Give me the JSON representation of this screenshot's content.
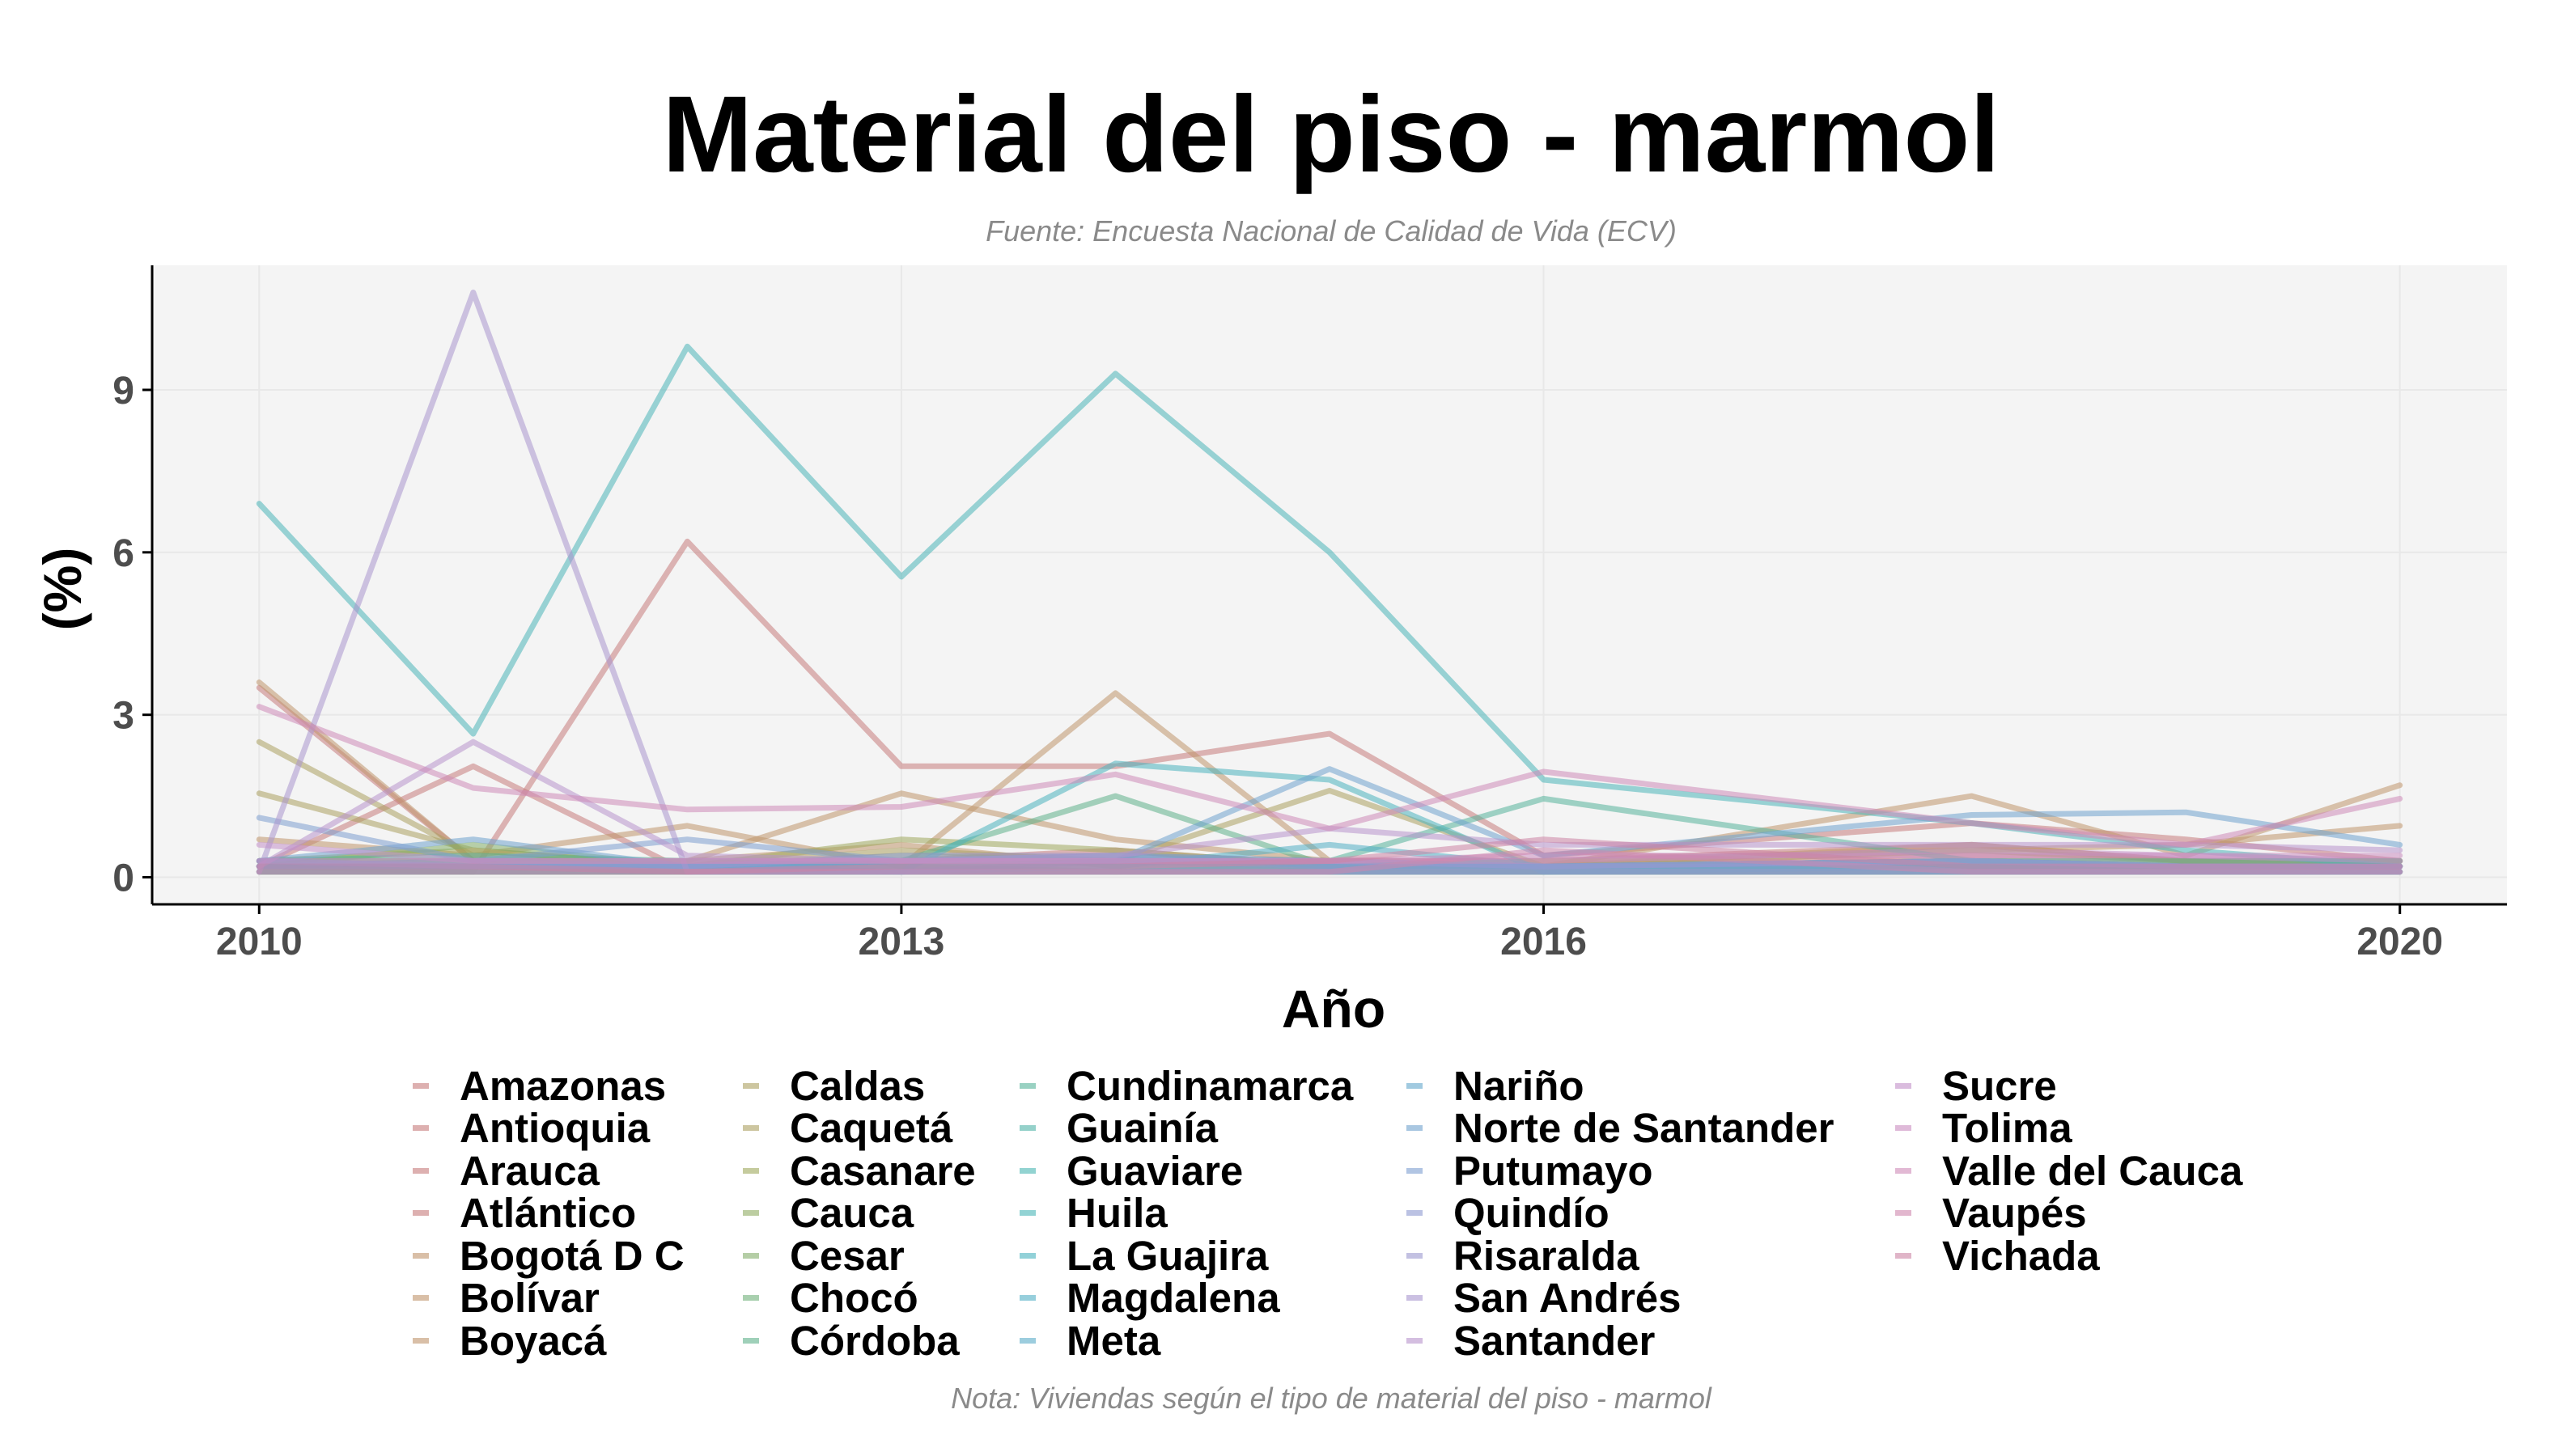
{
  "chart_data": {
    "type": "line",
    "title": "Material del piso - marmol",
    "subtitle": "Fuente: Encuesta Nacional de Calidad de Vida (ECV)",
    "caption": "Nota: Viviendas según el tipo de material del piso - marmol",
    "xlabel": "Año",
    "ylabel": "(%)",
    "xlim": [
      2009.5,
      2020.5
    ],
    "ylim": [
      -0.5,
      11.3
    ],
    "x_ticks": [
      2010,
      2013,
      2016,
      2020
    ],
    "y_ticks": [
      0,
      3,
      6,
      9
    ],
    "x": [
      2010,
      2011,
      2012,
      2013,
      2014,
      2015,
      2016,
      2018,
      2019,
      2020
    ],
    "grid": true,
    "legend_position": "bottom",
    "series": [
      {
        "name": "Amazonas",
        "color": "#C77C7C",
        "values": [
          0.1,
          0.1,
          0.1,
          0.1,
          0.1,
          0.1,
          0.1,
          0.1,
          0.1,
          0.1
        ]
      },
      {
        "name": "Antioquia",
        "color": "#C77C7C",
        "values": [
          3.5,
          0.3,
          0.2,
          0.3,
          0.3,
          0.3,
          0.3,
          0.6,
          0.3,
          0.3
        ]
      },
      {
        "name": "Arauca",
        "color": "#C77C7C",
        "values": [
          0.2,
          0.1,
          6.2,
          2.05,
          2.05,
          2.65,
          0.4,
          1.0,
          0.7,
          0.3
        ]
      },
      {
        "name": "Atlántico",
        "color": "#C77C7C",
        "values": [
          0.2,
          2.05,
          0.1,
          0.3,
          0.5,
          0.2,
          0.2,
          0.4,
          0.3,
          0.2
        ]
      },
      {
        "name": "Bogotá D C",
        "color": "#C0956C",
        "values": [
          0.7,
          0.4,
          0.95,
          0.2,
          3.4,
          0.3,
          0.2,
          1.5,
          0.4,
          1.7
        ]
      },
      {
        "name": "Bolívar",
        "color": "#C0956C",
        "values": [
          0.3,
          0.3,
          0.3,
          1.55,
          0.7,
          0.3,
          0.3,
          0.5,
          0.6,
          0.95
        ]
      },
      {
        "name": "Boyacá",
        "color": "#C0956C",
        "values": [
          3.6,
          0.3,
          0.3,
          0.6,
          0.2,
          0.2,
          0.2,
          0.6,
          0.3,
          0.3
        ]
      },
      {
        "name": "Caldas",
        "color": "#ABA060",
        "values": [
          2.5,
          0.4,
          0.2,
          0.5,
          0.3,
          1.6,
          0.2,
          0.5,
          0.3,
          0.3
        ]
      },
      {
        "name": "Caquetá",
        "color": "#ABA060",
        "values": [
          1.55,
          0.5,
          0.2,
          0.2,
          0.1,
          0.2,
          0.1,
          0.2,
          0.2,
          0.2
        ]
      },
      {
        "name": "Casanare",
        "color": "#9FA85C",
        "values": [
          0.3,
          0.5,
          0.2,
          0.7,
          0.5,
          0.2,
          0.2,
          0.3,
          0.2,
          0.2
        ]
      },
      {
        "name": "Cauca",
        "color": "#8FAC62",
        "values": [
          0.1,
          0.1,
          0.1,
          0.1,
          0.1,
          0.1,
          0.1,
          0.1,
          0.1,
          0.1
        ]
      },
      {
        "name": "Cesar",
        "color": "#84AE6A",
        "values": [
          0.2,
          0.6,
          0.2,
          0.4,
          0.3,
          0.2,
          0.1,
          0.2,
          0.2,
          0.2
        ]
      },
      {
        "name": "Chocó",
        "color": "#70B07A",
        "values": [
          0.1,
          0.1,
          0.1,
          0.1,
          0.1,
          0.1,
          0.1,
          0.1,
          0.1,
          0.1
        ]
      },
      {
        "name": "Córdoba",
        "color": "#5FB18A",
        "values": [
          0.2,
          0.3,
          0.2,
          0.3,
          1.5,
          0.2,
          0.2,
          0.3,
          0.2,
          0.2
        ]
      },
      {
        "name": "Cundinamarca",
        "color": "#55B39A",
        "values": [
          0.3,
          0.4,
          0.3,
          0.3,
          0.4,
          0.3,
          1.45,
          0.3,
          0.3,
          0.3
        ]
      },
      {
        "name": "Guainía",
        "color": "#4FB3A6",
        "values": [
          0.2,
          0.2,
          0.2,
          0.2,
          0.3,
          0.3,
          0.2,
          0.2,
          0.2,
          0.2
        ]
      },
      {
        "name": "Guaviare",
        "color": "#4AB5B2",
        "values": [
          0.2,
          0.2,
          0.2,
          0.1,
          0.2,
          0.1,
          0.1,
          0.1,
          0.1,
          0.1
        ]
      },
      {
        "name": "Huila",
        "color": "#4AB5B8",
        "values": [
          6.9,
          2.65,
          9.8,
          5.55,
          9.3,
          6.0,
          1.8,
          1.0,
          0.5,
          0.2
        ]
      },
      {
        "name": "La Guajira",
        "color": "#4AB3BE",
        "values": [
          0.3,
          0.2,
          0.1,
          0.1,
          2.1,
          1.8,
          0.1,
          0.2,
          0.1,
          0.1
        ]
      },
      {
        "name": "Magdalena",
        "color": "#52AFC4",
        "values": [
          0.2,
          0.2,
          0.2,
          0.2,
          0.2,
          0.6,
          0.2,
          0.2,
          0.2,
          0.2
        ]
      },
      {
        "name": "Meta",
        "color": "#5AABC8",
        "values": [
          0.2,
          0.3,
          0.2,
          0.3,
          0.4,
          0.2,
          0.2,
          0.3,
          0.2,
          0.2
        ]
      },
      {
        "name": "Nariño",
        "color": "#63A7CB",
        "values": [
          0.1,
          0.1,
          0.1,
          0.1,
          0.1,
          0.1,
          0.1,
          0.1,
          0.1,
          0.1
        ]
      },
      {
        "name": "Norte de Santander",
        "color": "#6FA2CD",
        "values": [
          0.3,
          0.7,
          0.2,
          0.1,
          0.3,
          2.0,
          0.4,
          1.15,
          1.2,
          0.6
        ]
      },
      {
        "name": "Putumayo",
        "color": "#7D9ED0",
        "values": [
          1.1,
          0.3,
          0.7,
          0.3,
          0.3,
          0.2,
          0.2,
          0.3,
          0.2,
          0.2
        ]
      },
      {
        "name": "Quindío",
        "color": "#8D9AD0",
        "values": [
          0.2,
          0.2,
          0.2,
          0.2,
          0.2,
          0.2,
          0.2,
          0.2,
          0.2,
          0.2
        ]
      },
      {
        "name": "Risaralda",
        "color": "#9B98CF",
        "values": [
          0.3,
          0.2,
          0.2,
          0.4,
          0.4,
          0.3,
          0.2,
          0.3,
          0.2,
          0.2
        ]
      },
      {
        "name": "San Andrés",
        "color": "#A996CE",
        "values": [
          0.1,
          10.8,
          0.1,
          0.1,
          0.1,
          0.1,
          0.1,
          0.1,
          0.1,
          0.1
        ]
      },
      {
        "name": "Santander",
        "color": "#B893CC",
        "values": [
          0.2,
          2.5,
          0.4,
          0.3,
          0.4,
          0.9,
          0.6,
          0.6,
          0.6,
          0.5
        ]
      },
      {
        "name": "Sucre",
        "color": "#C28FC8",
        "values": [
          0.6,
          0.3,
          0.3,
          0.3,
          0.3,
          0.3,
          0.3,
          0.5,
          0.4,
          0.3
        ]
      },
      {
        "name": "Tolima",
        "color": "#CA8CC0",
        "values": [
          0.3,
          0.3,
          0.3,
          0.3,
          0.3,
          0.3,
          0.4,
          0.4,
          0.4,
          0.4
        ]
      },
      {
        "name": "Valle del Cauca",
        "color": "#CE8AB8",
        "values": [
          3.15,
          1.65,
          1.25,
          1.3,
          1.9,
          0.9,
          1.95,
          1.0,
          0.6,
          1.45
        ]
      },
      {
        "name": "Vaupés",
        "color": "#CE87AE",
        "values": [
          0.1,
          0.1,
          0.1,
          0.1,
          0.1,
          0.1,
          0.5,
          0.1,
          0.1,
          0.1
        ]
      },
      {
        "name": "Vichada",
        "color": "#CC84A4",
        "values": [
          0.2,
          0.2,
          0.1,
          0.2,
          0.2,
          0.3,
          0.7,
          0.2,
          0.2,
          0.2
        ]
      }
    ]
  }
}
